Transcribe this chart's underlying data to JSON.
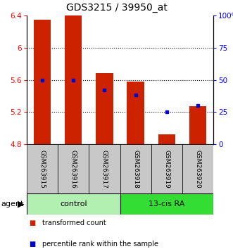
{
  "title": "GDS3215 / 39950_at",
  "samples": [
    "GSM263915",
    "GSM263916",
    "GSM263917",
    "GSM263918",
    "GSM263919",
    "GSM263920"
  ],
  "red_values": [
    6.35,
    6.4,
    5.68,
    5.58,
    4.92,
    5.27
  ],
  "blue_percentiles": [
    50,
    50,
    42,
    38,
    25,
    30
  ],
  "ylim_left": [
    4.8,
    6.4
  ],
  "ylim_right": [
    0,
    100
  ],
  "yticks_left": [
    4.8,
    5.2,
    5.6,
    6.0,
    6.4
  ],
  "yticks_right": [
    0,
    25,
    50,
    75,
    100
  ],
  "ytick_labels_left": [
    "4.8",
    "5.2",
    "5.6",
    "6",
    "6.4"
  ],
  "ytick_labels_right": [
    "0",
    "25",
    "50",
    "75",
    "100%"
  ],
  "groups": [
    {
      "label": "control",
      "indices": [
        0,
        1,
        2
      ],
      "color": "#b2f0b2"
    },
    {
      "label": "13-cis RA",
      "indices": [
        3,
        4,
        5
      ],
      "color": "#33dd33"
    }
  ],
  "bar_color": "#cc2200",
  "blue_color": "#0000cc",
  "bar_width": 0.55,
  "agent_label": "agent",
  "legend_items": [
    {
      "label": "transformed count",
      "color": "#cc2200"
    },
    {
      "label": "percentile rank within the sample",
      "color": "#0000cc"
    }
  ],
  "background_color": "#ffffff",
  "label_area_color": "#c8c8c8",
  "base_value": 4.8
}
